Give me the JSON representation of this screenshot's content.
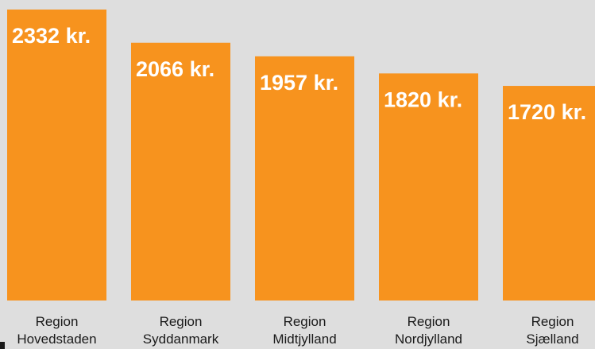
{
  "chart_data": {
    "type": "bar",
    "categories": [
      "Region Hovedstaden",
      "Region Syddanmark",
      "Region Midtjylland",
      "Region Nordjylland",
      "Region Sjælland"
    ],
    "values": [
      2332,
      2066,
      1957,
      1820,
      1720
    ],
    "value_labels": [
      "2332 kr.",
      "2066 kr.",
      "1957 kr.",
      "1820 kr.",
      "1720 kr."
    ],
    "color": "#f7931e",
    "ylim": [
      0,
      2332
    ]
  }
}
